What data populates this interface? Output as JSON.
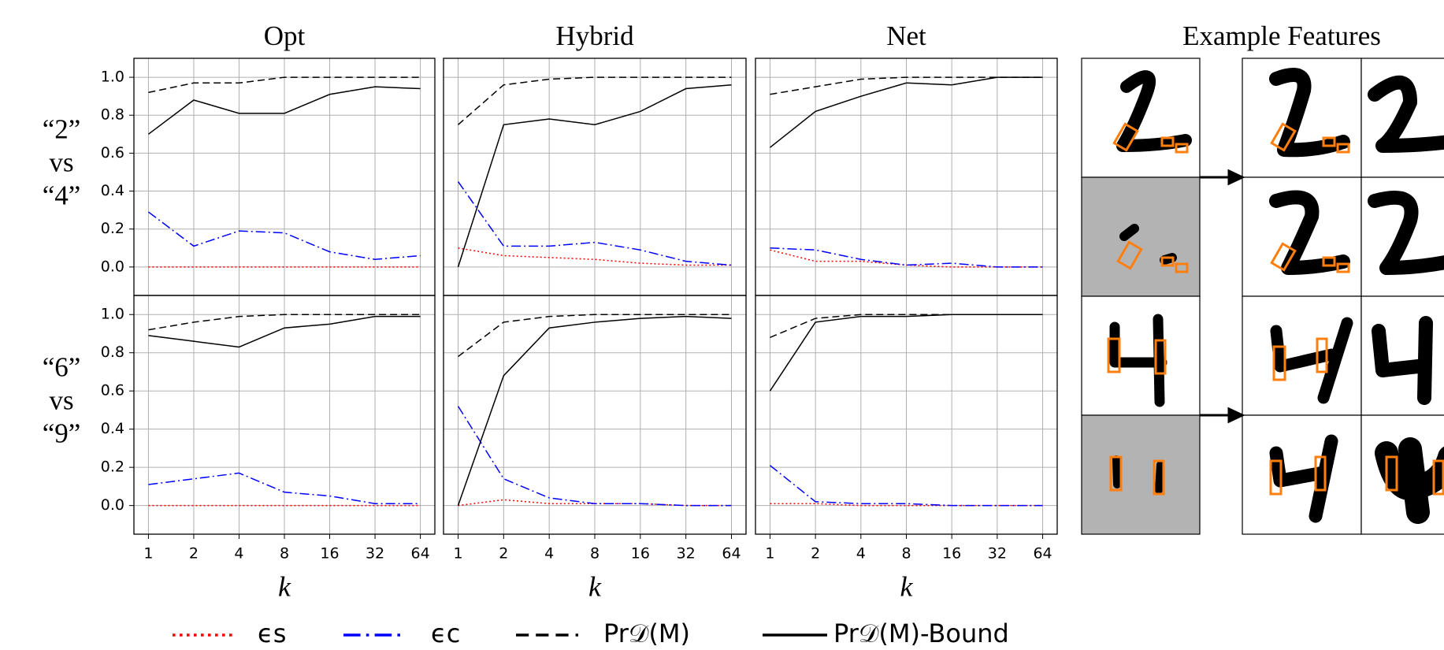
{
  "chart_data": [
    {
      "type": "line",
      "title": "Opt",
      "ylim": [
        -0.15,
        1.1
      ],
      "grid": true,
      "yticks": [
        {
          "value": 0,
          "label": "0.0"
        },
        {
          "value": 0.2,
          "label": "0.2"
        },
        {
          "value": 0.4,
          "label": "0.4"
        },
        {
          "value": 0.6,
          "label": "0.6"
        },
        {
          "value": 0.8,
          "label": "0.8"
        },
        {
          "value": 1,
          "label": "1.0"
        }
      ],
      "series": [
        {
          "name": "ϵs",
          "color": "#ff0000",
          "linestyle": "dotted",
          "values": [
            0,
            0,
            0,
            0,
            0,
            0,
            0
          ]
        },
        {
          "name": "ϵc",
          "color": "#0000ff",
          "linestyle": "dashdot",
          "values": [
            0.29,
            0.11,
            0.19,
            0.18,
            0.08,
            0.04,
            0.06
          ]
        },
        {
          "name": "Pr𝒟(M)",
          "color": "#000000",
          "linestyle": "dashed",
          "values": [
            0.92,
            0.97,
            0.97,
            1.0,
            1.0,
            1.0,
            1.0
          ]
        },
        {
          "name": "Pr𝒟(M)-Bound",
          "color": "#000000",
          "linestyle": "solid",
          "values": [
            0.7,
            0.88,
            0.81,
            0.81,
            0.91,
            0.95,
            0.94
          ]
        }
      ]
    },
    {
      "type": "line",
      "title": "Hybrid",
      "ylim": [
        -0.15,
        1.1
      ],
      "grid": true,
      "yticks": [
        0,
        0.2,
        0.4,
        0.6,
        0.8,
        1
      ],
      "series": [
        {
          "name": "ϵs",
          "color": "#ff0000",
          "linestyle": "dotted",
          "values": [
            0.1,
            0.06,
            0.05,
            0.04,
            0.02,
            0.01,
            0.01
          ]
        },
        {
          "name": "ϵc",
          "color": "#0000ff",
          "linestyle": "dashdot",
          "values": [
            0.45,
            0.11,
            0.11,
            0.13,
            0.09,
            0.03,
            0.01
          ]
        },
        {
          "name": "Pr𝒟(M)",
          "color": "#000000",
          "linestyle": "dashed",
          "values": [
            0.75,
            0.96,
            0.99,
            1.0,
            1.0,
            1.0,
            1.0
          ]
        },
        {
          "name": "Pr𝒟(M)-Bound",
          "color": "#000000",
          "linestyle": "solid",
          "values": [
            0.0,
            0.75,
            0.78,
            0.75,
            0.82,
            0.94,
            0.96
          ]
        }
      ]
    },
    {
      "type": "line",
      "title": "Net",
      "ylim": [
        -0.15,
        1.1
      ],
      "grid": true,
      "yticks": [
        0,
        0.2,
        0.4,
        0.6,
        0.8,
        1
      ],
      "series": [
        {
          "name": "ϵs",
          "color": "#ff0000",
          "linestyle": "dotted",
          "values": [
            0.09,
            0.03,
            0.03,
            0.01,
            0.0,
            0.0,
            0.0
          ]
        },
        {
          "name": "ϵc",
          "color": "#0000ff",
          "linestyle": "dashdot",
          "values": [
            0.1,
            0.09,
            0.04,
            0.01,
            0.02,
            0.0,
            0.0
          ]
        },
        {
          "name": "Pr𝒟(M)",
          "color": "#000000",
          "linestyle": "dashed",
          "values": [
            0.91,
            0.95,
            0.99,
            1.0,
            1.0,
            1.0,
            1.0
          ]
        },
        {
          "name": "Pr𝒟(M)-Bound",
          "color": "#000000",
          "linestyle": "solid",
          "values": [
            0.63,
            0.82,
            0.9,
            0.97,
            0.96,
            1.0,
            1.0
          ]
        }
      ]
    },
    {
      "type": "line",
      "xlabel": "k",
      "categories": [
        "1",
        "2",
        "4",
        "8",
        "16",
        "32",
        "64"
      ],
      "ylim": [
        -0.15,
        1.1
      ],
      "grid": true,
      "yticks": [
        {
          "value": 0,
          "label": "0.0"
        },
        {
          "value": 0.2,
          "label": "0.2"
        },
        {
          "value": 0.4,
          "label": "0.4"
        },
        {
          "value": 0.6,
          "label": "0.6"
        },
        {
          "value": 0.8,
          "label": "0.8"
        },
        {
          "value": 1,
          "label": "1.0"
        }
      ],
      "series": [
        {
          "name": "ϵs",
          "color": "#ff0000",
          "linestyle": "dotted",
          "values": [
            0,
            0,
            0,
            0,
            0,
            0,
            0
          ]
        },
        {
          "name": "ϵc",
          "color": "#0000ff",
          "linestyle": "dashdot",
          "values": [
            0.11,
            0.14,
            0.17,
            0.07,
            0.05,
            0.01,
            0.01
          ]
        },
        {
          "name": "Pr𝒟(M)",
          "color": "#000000",
          "linestyle": "dashed",
          "values": [
            0.92,
            0.96,
            0.99,
            1.0,
            1.0,
            1.0,
            1.0
          ]
        },
        {
          "name": "Pr𝒟(M)-Bound",
          "color": "#000000",
          "linestyle": "solid",
          "values": [
            0.89,
            0.86,
            0.83,
            0.93,
            0.95,
            0.99,
            0.99
          ]
        }
      ]
    },
    {
      "type": "line",
      "xlabel": "k",
      "categories": [
        "1",
        "2",
        "4",
        "8",
        "16",
        "32",
        "64"
      ],
      "ylim": [
        -0.15,
        1.1
      ],
      "grid": true,
      "yticks": [
        0,
        0.2,
        0.4,
        0.6,
        0.8,
        1
      ],
      "series": [
        {
          "name": "ϵs",
          "color": "#ff0000",
          "linestyle": "dotted",
          "values": [
            0.0,
            0.03,
            0.01,
            0.01,
            0.01,
            0.0,
            0.0
          ]
        },
        {
          "name": "ϵc",
          "color": "#0000ff",
          "linestyle": "dashdot",
          "values": [
            0.52,
            0.14,
            0.04,
            0.01,
            0.01,
            0.0,
            0.0
          ]
        },
        {
          "name": "Pr𝒟(M)",
          "color": "#000000",
          "linestyle": "dashed",
          "values": [
            0.78,
            0.96,
            0.99,
            1.0,
            1.0,
            1.0,
            1.0
          ]
        },
        {
          "name": "Pr𝒟(M)-Bound",
          "color": "#000000",
          "linestyle": "solid",
          "values": [
            0.0,
            0.68,
            0.93,
            0.96,
            0.98,
            0.99,
            0.98
          ]
        }
      ]
    },
    {
      "type": "line",
      "xlabel": "k",
      "categories": [
        "1",
        "2",
        "4",
        "8",
        "16",
        "32",
        "64"
      ],
      "ylim": [
        -0.15,
        1.1
      ],
      "grid": true,
      "yticks": [
        0,
        0.2,
        0.4,
        0.6,
        0.8,
        1
      ],
      "series": [
        {
          "name": "ϵs",
          "color": "#ff0000",
          "linestyle": "dotted",
          "values": [
            0.01,
            0.01,
            0.0,
            0.0,
            0.0,
            0.0,
            0.0
          ]
        },
        {
          "name": "ϵc",
          "color": "#0000ff",
          "linestyle": "dashdot",
          "values": [
            0.21,
            0.02,
            0.01,
            0.01,
            0.0,
            0.0,
            0.0
          ]
        },
        {
          "name": "Pr𝒟(M)",
          "color": "#000000",
          "linestyle": "dashed",
          "values": [
            0.88,
            0.98,
            1.0,
            1.0,
            1.0,
            1.0,
            1.0
          ]
        },
        {
          "name": "Pr𝒟(M)-Bound",
          "color": "#000000",
          "linestyle": "solid",
          "values": [
            0.6,
            0.96,
            0.99,
            0.99,
            1.0,
            1.0,
            1.0
          ]
        }
      ]
    }
  ],
  "figure": {
    "row_labels": [
      [
        "“2”",
        "vs",
        "“4”"
      ],
      [
        "“6”",
        "vs",
        "“9”"
      ]
    ],
    "features_title": "Example Features"
  }
}
